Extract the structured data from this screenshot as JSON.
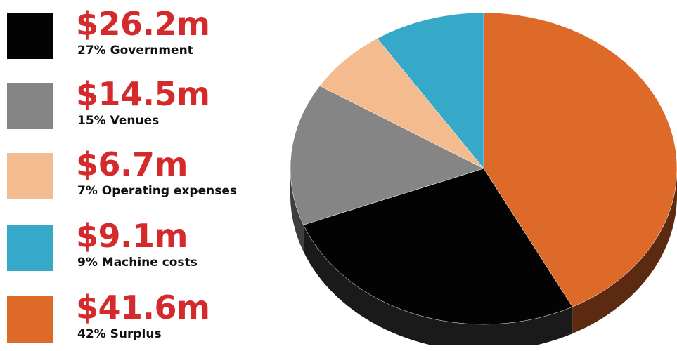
{
  "chart_data": {
    "type": "pie",
    "title": "",
    "slices": [
      {
        "amount": "$41.6m",
        "label": "42% Surplus",
        "percent": 42,
        "value": 41.6,
        "color": "#de6a29",
        "side": "#5c2a10"
      },
      {
        "amount": "$26.2m",
        "label": "27% Government",
        "percent": 27,
        "value": 26.2,
        "color": "#030303",
        "side": "#1a1a1a"
      },
      {
        "amount": "$14.5m",
        "label": "15% Venues",
        "percent": 15,
        "value": 14.5,
        "color": "#858585",
        "side": "#3e3e3e"
      },
      {
        "amount": "$6.7m",
        "label": "7% Operating expenses",
        "percent": 7,
        "value": 6.7,
        "color": "#f4bb8e",
        "side": "#9a6e4c"
      },
      {
        "amount": "$9.1m",
        "label": "9% Machine costs",
        "percent": 9,
        "value": 9.1,
        "color": "#36a8c8",
        "side": "#1c6078"
      }
    ],
    "legend_order": [
      1,
      2,
      3,
      4,
      0
    ],
    "legend_placement": "left"
  }
}
